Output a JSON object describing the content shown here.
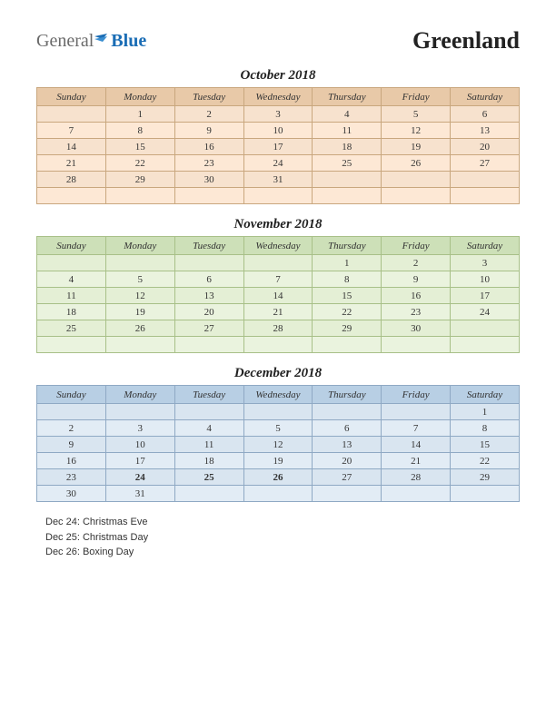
{
  "logo": {
    "part1": "General",
    "part2": "Blue"
  },
  "country": "Greenland",
  "day_headers": [
    "Sunday",
    "Monday",
    "Tuesday",
    "Wednesday",
    "Thursday",
    "Friday",
    "Saturday"
  ],
  "calendars": [
    {
      "title": "October 2018",
      "header_bg": "#e8c9a8",
      "row_bg_alt": [
        "#f7e2ce",
        "#fde8d5"
      ],
      "border": "#c9a77e",
      "rows": [
        [
          "",
          "1",
          "2",
          "3",
          "4",
          "5",
          "6"
        ],
        [
          "7",
          "8",
          "9",
          "10",
          "11",
          "12",
          "13"
        ],
        [
          "14",
          "15",
          "16",
          "17",
          "18",
          "19",
          "20"
        ],
        [
          "21",
          "22",
          "23",
          "24",
          "25",
          "26",
          "27"
        ],
        [
          "28",
          "29",
          "30",
          "31",
          "",
          "",
          ""
        ],
        [
          "",
          "",
          "",
          "",
          "",
          "",
          ""
        ]
      ],
      "holidays": []
    },
    {
      "title": "November 2018",
      "header_bg": "#cde0b8",
      "row_bg_alt": [
        "#e4efd5",
        "#eaf3de"
      ],
      "border": "#a8c088",
      "rows": [
        [
          "",
          "",
          "",
          "",
          "1",
          "2",
          "3"
        ],
        [
          "4",
          "5",
          "6",
          "7",
          "8",
          "9",
          "10"
        ],
        [
          "11",
          "12",
          "13",
          "14",
          "15",
          "16",
          "17"
        ],
        [
          "18",
          "19",
          "20",
          "21",
          "22",
          "23",
          "24"
        ],
        [
          "25",
          "26",
          "27",
          "28",
          "29",
          "30",
          ""
        ],
        [
          "",
          "",
          "",
          "",
          "",
          "",
          ""
        ]
      ],
      "holidays": []
    },
    {
      "title": "December 2018",
      "header_bg": "#b8cfe4",
      "row_bg_alt": [
        "#d9e5f0",
        "#e2ecf5"
      ],
      "border": "#8fa9c4",
      "rows": [
        [
          "",
          "",
          "",
          "",
          "",
          "",
          "1"
        ],
        [
          "2",
          "3",
          "4",
          "5",
          "6",
          "7",
          "8"
        ],
        [
          "9",
          "10",
          "11",
          "12",
          "13",
          "14",
          "15"
        ],
        [
          "16",
          "17",
          "18",
          "19",
          "20",
          "21",
          "22"
        ],
        [
          "23",
          "24",
          "25",
          "26",
          "27",
          "28",
          "29"
        ],
        [
          "30",
          "31",
          "",
          "",
          "",
          "",
          ""
        ]
      ],
      "holidays": [
        [
          4,
          1
        ],
        [
          4,
          2
        ],
        [
          4,
          3
        ]
      ]
    }
  ],
  "notes": [
    "Dec 24: Christmas Eve",
    "Dec 25: Christmas Day",
    "Dec 26: Boxing Day"
  ]
}
